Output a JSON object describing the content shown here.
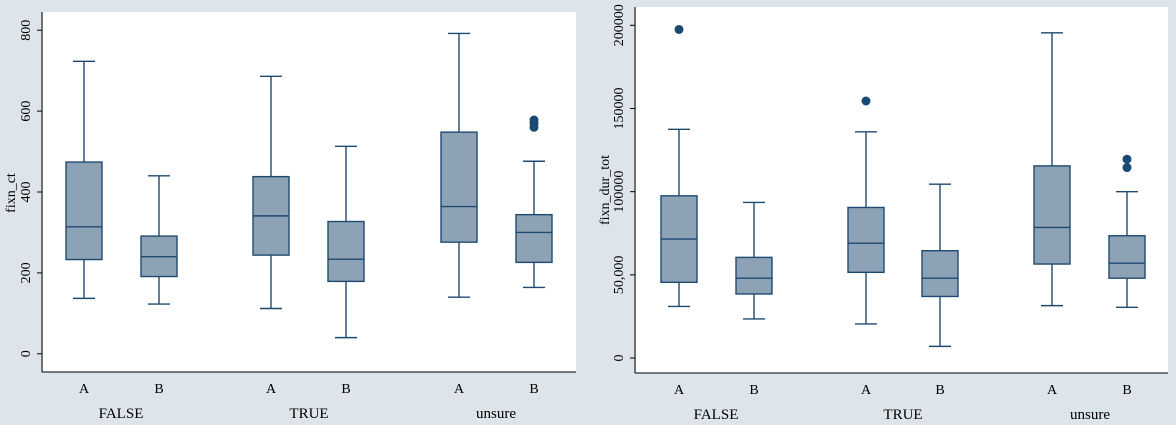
{
  "colors": {
    "background": "#dde4ea",
    "plot_bg": "#ffffff",
    "box_fill": "#8ea2b6",
    "box_stroke": "#1f4a70",
    "outlier": "#1a4a72"
  },
  "chart_data": [
    {
      "type": "box",
      "ylabel": "fixn_ct",
      "ylim": [
        -45,
        845
      ],
      "yticks": [
        0,
        200,
        400,
        600,
        800
      ],
      "yticklabels": [
        "0",
        "200",
        "400",
        "600",
        "800"
      ],
      "groups": [
        "FALSE",
        "TRUE",
        "unsure"
      ],
      "categories": [
        "A",
        "B"
      ],
      "boxes": [
        {
          "group": "FALSE",
          "category": "A",
          "min": 137,
          "q1": 233,
          "median": 314,
          "q3": 474,
          "max": 723,
          "outliers": []
        },
        {
          "group": "FALSE",
          "category": "B",
          "min": 123,
          "q1": 191,
          "median": 240,
          "q3": 291,
          "max": 440,
          "outliers": []
        },
        {
          "group": "TRUE",
          "category": "A",
          "min": 112,
          "q1": 244,
          "median": 341,
          "q3": 438,
          "max": 686,
          "outliers": []
        },
        {
          "group": "TRUE",
          "category": "B",
          "min": 40,
          "q1": 179,
          "median": 234,
          "q3": 327,
          "max": 513,
          "outliers": []
        },
        {
          "group": "unsure",
          "category": "A",
          "min": 140,
          "q1": 276,
          "median": 364,
          "q3": 548,
          "max": 792,
          "outliers": []
        },
        {
          "group": "unsure",
          "category": "B",
          "min": 164,
          "q1": 226,
          "median": 300,
          "q3": 344,
          "max": 476,
          "outliers": [
            560,
            570,
            578
          ]
        }
      ]
    },
    {
      "type": "box",
      "ylabel": "fixn_dur_tot",
      "ylim": [
        -9000,
        211000
      ],
      "yticks": [
        0,
        50000,
        100000,
        150000,
        200000
      ],
      "yticklabels": [
        "0",
        "50,000",
        "100000",
        "150000",
        "200000"
      ],
      "groups": [
        "FALSE",
        "TRUE",
        "unsure"
      ],
      "categories": [
        "A",
        "B"
      ],
      "boxes": [
        {
          "group": "FALSE",
          "category": "A",
          "min": 31000,
          "q1": 45500,
          "median": 71500,
          "q3": 97500,
          "max": 137500,
          "outliers": [
            197500
          ]
        },
        {
          "group": "FALSE",
          "category": "B",
          "min": 23500,
          "q1": 38500,
          "median": 48000,
          "q3": 60500,
          "max": 93500,
          "outliers": []
        },
        {
          "group": "TRUE",
          "category": "A",
          "min": 20500,
          "q1": 51500,
          "median": 69000,
          "q3": 90500,
          "max": 136000,
          "outliers": [
            154500
          ]
        },
        {
          "group": "TRUE",
          "category": "B",
          "min": 7000,
          "q1": 37000,
          "median": 48000,
          "q3": 64500,
          "max": 104500,
          "outliers": []
        },
        {
          "group": "unsure",
          "category": "A",
          "min": 31500,
          "q1": 56500,
          "median": 78500,
          "q3": 115500,
          "max": 195500,
          "outliers": []
        },
        {
          "group": "unsure",
          "category": "B",
          "min": 30500,
          "q1": 48000,
          "median": 57000,
          "q3": 73500,
          "max": 100000,
          "outliers": [
            114500,
            119500
          ]
        }
      ]
    }
  ]
}
